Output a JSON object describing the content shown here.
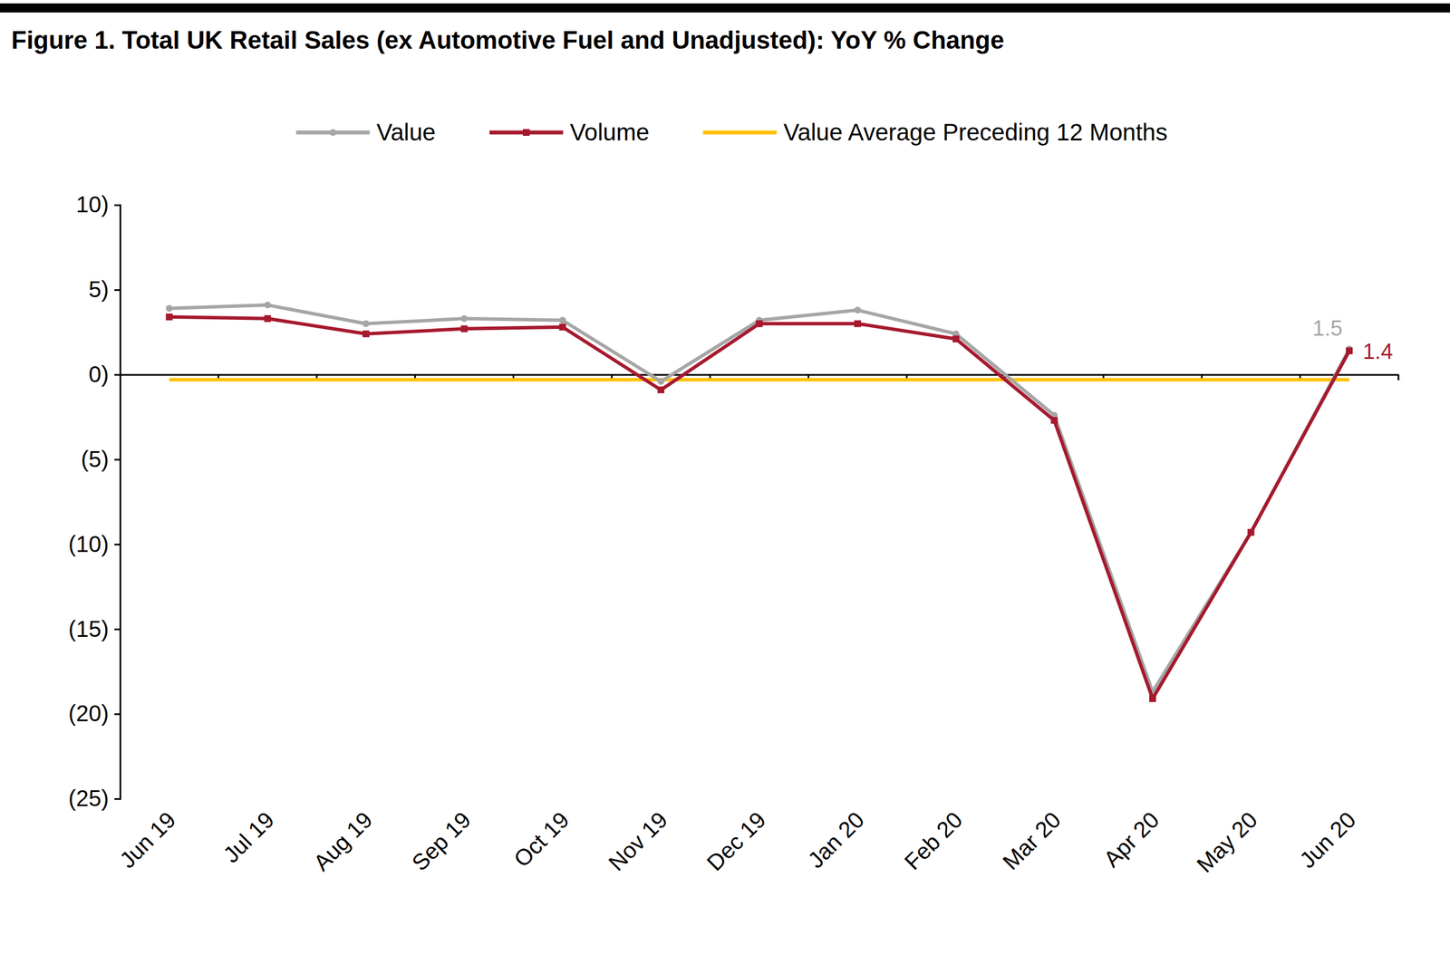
{
  "chart_data": {
    "type": "line",
    "title": "Figure 1. Total UK Retail Sales (ex Automotive Fuel and Unadjusted): YoY % Change",
    "categories": [
      "Jun 19",
      "Jul 19",
      "Aug 19",
      "Sep 19",
      "Oct 19",
      "Nov 19",
      "Dec 19",
      "Jan 20",
      "Feb 20",
      "Mar 20",
      "Apr 20",
      "May 20",
      "Jun 20"
    ],
    "series": [
      {
        "name": "Value",
        "color": "#a6a6a6",
        "marker": "circle",
        "line_style": "solid",
        "values": [
          3.9,
          4.1,
          3.0,
          3.3,
          3.2,
          -0.4,
          3.2,
          3.8,
          2.4,
          -2.4,
          -18.7,
          -9.3,
          1.5
        ]
      },
      {
        "name": "Volume",
        "color": "#a6192e",
        "marker": "square",
        "line_style": "solid",
        "values": [
          3.4,
          3.3,
          2.4,
          2.7,
          2.8,
          -0.9,
          3.0,
          3.0,
          2.1,
          -2.7,
          -19.1,
          -9.3,
          1.4
        ]
      },
      {
        "name": "Value Average Preceding 12 Months",
        "color": "#ffc000",
        "marker": "none",
        "line_style": "solid",
        "values": [
          -0.3,
          -0.3,
          -0.3,
          -0.3,
          -0.3,
          -0.3,
          -0.3,
          -0.3,
          -0.3,
          -0.3,
          -0.3,
          -0.3,
          -0.3
        ]
      }
    ],
    "annotations": [
      {
        "text": "1.5",
        "x": "Jun 20",
        "y": 1.5,
        "color": "#a6a6a6"
      },
      {
        "text": "1.4",
        "x": "Jun 20",
        "y": 1.4,
        "color": "#a6192e"
      }
    ],
    "ylim": [
      -25,
      10
    ],
    "yticks": [
      {
        "value": -25,
        "label": "(25)"
      },
      {
        "value": -20,
        "label": "(20)"
      },
      {
        "value": -15,
        "label": "(15)"
      },
      {
        "value": -10,
        "label": "(10)"
      },
      {
        "value": -5,
        "label": "(5)"
      },
      {
        "value": 0,
        "label": "0)"
      },
      {
        "value": 5,
        "label": "5)"
      },
      {
        "value": 10,
        "label": "10)"
      }
    ],
    "grid": false,
    "legend": "top"
  }
}
